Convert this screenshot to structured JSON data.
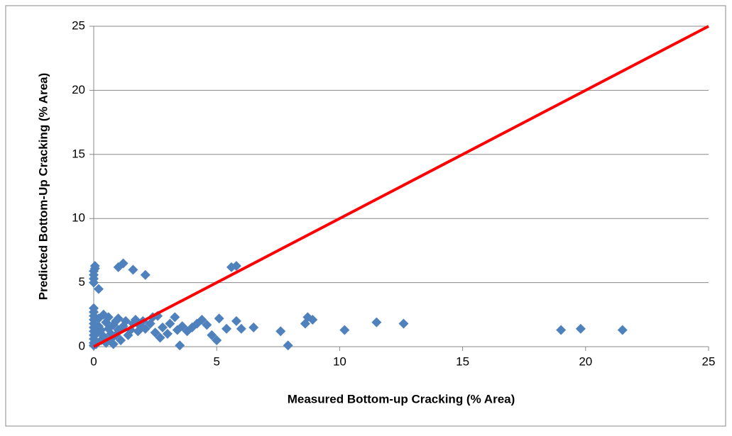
{
  "chart_data": {
    "type": "scatter",
    "xlabel": "Measured Bottom-up Cracking (% Area)",
    "ylabel": "Predicted Bottom-Up Cracking (% Area)",
    "xlim": [
      0,
      25
    ],
    "ylim": [
      0,
      25
    ],
    "xticks": [
      0,
      5,
      10,
      15,
      20,
      25
    ],
    "yticks": [
      0,
      5,
      10,
      15,
      20,
      25
    ],
    "grid": true,
    "series": [
      {
        "type": "scatter",
        "color": "#4f81bd",
        "x": [
          0,
          0,
          0,
          0,
          0.05,
          0.05,
          0.2,
          1.0,
          1.2,
          1.6,
          2.1,
          5.6,
          5.8,
          0,
          0,
          0,
          0,
          0,
          0,
          0,
          0,
          0,
          0,
          0,
          0.1,
          0.1,
          0.2,
          0.2,
          0.3,
          0.3,
          0.4,
          0.4,
          0.5,
          0.5,
          0.6,
          0.6,
          0.7,
          0.7,
          0.8,
          0.8,
          0.9,
          0.9,
          1.0,
          1.0,
          1.1,
          1.2,
          1.3,
          1.4,
          1.5,
          1.6,
          1.7,
          1.8,
          1.9,
          2.0,
          2.1,
          2.3,
          2.4,
          2.5,
          2.6,
          2.7,
          2.8,
          3.0,
          3.1,
          3.3,
          3.4,
          3.5,
          3.6,
          3.8,
          4.0,
          4.2,
          4.4,
          4.6,
          4.8,
          5.0,
          5.1,
          5.4,
          5.8,
          6.0,
          6.5,
          7.6,
          7.9,
          8.6,
          8.7,
          8.9,
          10.2,
          11.5,
          12.6,
          19.0,
          19.8,
          21.5
        ],
        "values": [
          5.0,
          5.3,
          5.6,
          5.9,
          6.1,
          6.3,
          4.5,
          6.2,
          6.5,
          6.0,
          5.6,
          6.2,
          6.3,
          0.1,
          0.3,
          0.6,
          0.9,
          1.2,
          1.5,
          1.8,
          2.1,
          2.4,
          2.7,
          3.0,
          0.2,
          1.0,
          1.6,
          2.2,
          0.5,
          1.3,
          2.5,
          0.8,
          1.9,
          0.3,
          1.4,
          2.3,
          0.6,
          1.0,
          1.7,
          0.2,
          2.0,
          0.9,
          1.3,
          2.2,
          0.5,
          1.6,
          2.0,
          0.9,
          1.3,
          1.8,
          2.1,
          1.2,
          1.6,
          2.0,
          1.4,
          1.8,
          2.3,
          1.1,
          2.4,
          0.7,
          1.5,
          1.0,
          1.8,
          2.3,
          1.3,
          0.1,
          1.6,
          1.2,
          1.5,
          1.8,
          2.1,
          1.7,
          0.9,
          0.5,
          2.2,
          1.4,
          2.0,
          1.4,
          1.5,
          1.2,
          0.1,
          1.8,
          2.3,
          2.1,
          1.3,
          1.9,
          1.8,
          1.3,
          1.4,
          1.3
        ]
      },
      {
        "type": "line",
        "color": "#ff0000",
        "x": [
          0,
          25
        ],
        "values": [
          0,
          25
        ]
      }
    ]
  }
}
